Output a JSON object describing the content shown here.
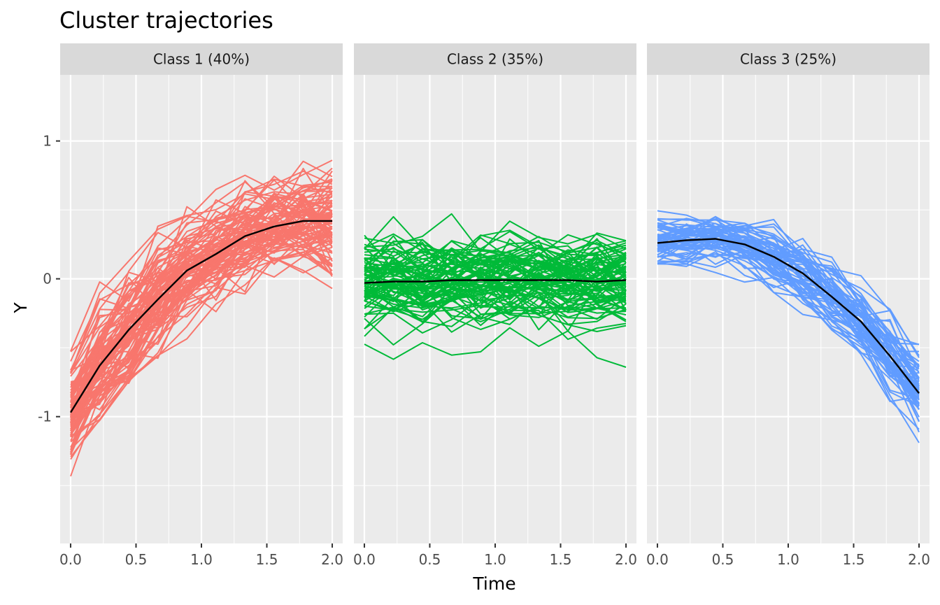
{
  "chart_data": {
    "type": "line",
    "title": "Cluster trajectories",
    "xlabel": "Time",
    "ylabel": "Y",
    "xlim": [
      -0.08,
      2.08
    ],
    "ylim": [
      -1.92,
      1.48
    ],
    "x_ticks": [
      0.0,
      0.5,
      1.0,
      1.5,
      2.0
    ],
    "x_tick_labels": [
      "0.0",
      "0.5",
      "1.0",
      "1.5",
      "2.0"
    ],
    "y_ticks": [
      -1,
      0,
      1
    ],
    "y_tick_labels": [
      "-1",
      "0",
      "1"
    ],
    "x": [
      0.0,
      0.222,
      0.444,
      0.667,
      0.889,
      1.111,
      1.333,
      1.556,
      1.778,
      2.0
    ],
    "grid": true,
    "panels": [
      {
        "label": "Class 1 (40%)",
        "color": "#F8766D",
        "mean_color": "#000000",
        "n_trajectories": 100,
        "mean": [
          -0.97,
          -0.63,
          -0.37,
          -0.15,
          0.06,
          0.18,
          0.31,
          0.38,
          0.42,
          0.42
        ],
        "spread": [
          0.25,
          0.27,
          0.27,
          0.25,
          0.23,
          0.22,
          0.21,
          0.2,
          0.21,
          0.25
        ]
      },
      {
        "label": "Class 2 (35%)",
        "color": "#00BA38",
        "mean_color": "#000000",
        "n_trajectories": 88,
        "mean": [
          -0.03,
          -0.02,
          -0.02,
          -0.01,
          -0.01,
          -0.01,
          -0.01,
          -0.01,
          -0.02,
          -0.01
        ],
        "spread": [
          0.2,
          0.2,
          0.2,
          0.2,
          0.2,
          0.2,
          0.2,
          0.2,
          0.2,
          0.2
        ]
      },
      {
        "label": "Class 3 (25%)",
        "color": "#619CFF",
        "mean_color": "#000000",
        "n_trajectories": 62,
        "mean": [
          0.26,
          0.28,
          0.29,
          0.25,
          0.16,
          0.04,
          -0.13,
          -0.31,
          -0.56,
          -0.83
        ],
        "spread": [
          0.12,
          0.12,
          0.12,
          0.13,
          0.14,
          0.15,
          0.16,
          0.17,
          0.18,
          0.22
        ]
      }
    ]
  }
}
